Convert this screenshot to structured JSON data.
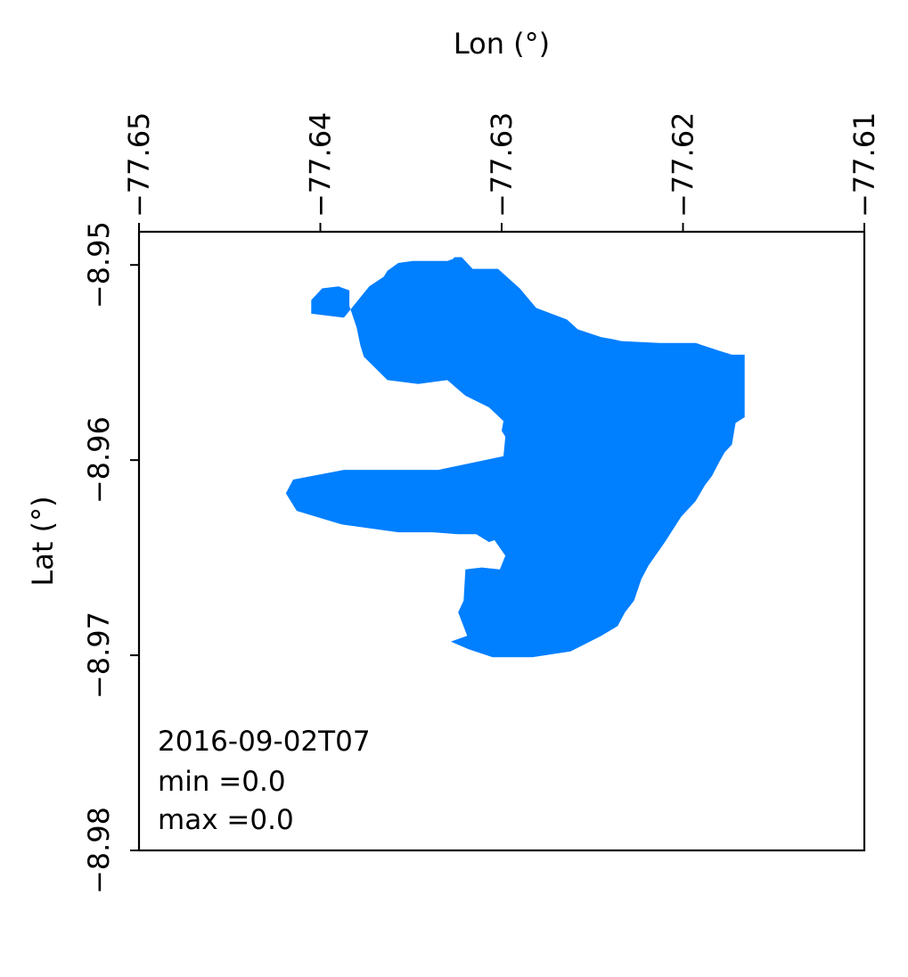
{
  "chart_data": {
    "type": "heatmap",
    "title": "",
    "xlabel": "Lon (°)",
    "ylabel": "Lat (°)",
    "xlim": [
      -77.65,
      -77.61
    ],
    "ylim": [
      -8.98,
      -8.9483
    ],
    "x_ticks": [
      -77.65,
      -77.64,
      -77.63,
      -77.62,
      -77.61
    ],
    "x_tick_labels": [
      "−77.65",
      "−77.64",
      "−77.63",
      "−77.62",
      "−77.61"
    ],
    "y_ticks": [
      -8.95,
      -8.96,
      -8.97,
      -8.98
    ],
    "y_tick_labels": [
      "−8.95",
      "−8.96",
      "−8.97",
      "−8.98"
    ],
    "x_axis_position": "top",
    "grid": false,
    "fill_color": "#007FFF",
    "mask_value": 0.0,
    "mask_outline_lonlat": [
      [
        -77.6316,
        -8.9502
      ],
      [
        -77.6302,
        -8.9502
      ],
      [
        -77.629,
        -8.9512
      ],
      [
        -77.6281,
        -8.9522
      ],
      [
        -77.6264,
        -8.9528
      ],
      [
        -77.6258,
        -8.9533
      ],
      [
        -77.6245,
        -8.9537
      ],
      [
        -77.6239,
        -8.9538
      ],
      [
        -77.6234,
        -8.9539
      ],
      [
        -77.6213,
        -8.954
      ],
      [
        -77.6193,
        -8.954
      ],
      [
        -77.618,
        -8.9544
      ],
      [
        -77.6173,
        -8.9546
      ],
      [
        -77.6166,
        -8.9546
      ],
      [
        -77.6166,
        -8.9578
      ],
      [
        -77.6171,
        -8.9581
      ],
      [
        -77.6173,
        -8.9592
      ],
      [
        -77.6177,
        -8.9596
      ],
      [
        -77.618,
        -8.9601
      ],
      [
        -77.6184,
        -8.9608
      ],
      [
        -77.6188,
        -8.9613
      ],
      [
        -77.6193,
        -8.9621
      ],
      [
        -77.6201,
        -8.9629
      ],
      [
        -77.621,
        -8.9642
      ],
      [
        -77.6219,
        -8.9654
      ],
      [
        -77.6223,
        -8.9661
      ],
      [
        -77.6227,
        -8.9672
      ],
      [
        -77.6232,
        -8.9678
      ],
      [
        -77.6236,
        -8.9685
      ],
      [
        -77.6245,
        -8.969
      ],
      [
        -77.6262,
        -8.9698
      ],
      [
        -77.6283,
        -8.9701
      ],
      [
        -77.6305,
        -8.9701
      ],
      [
        -77.6318,
        -8.9697
      ],
      [
        -77.6328,
        -8.9693
      ],
      [
        -77.6319,
        -8.969
      ],
      [
        -77.6324,
        -8.9678
      ],
      [
        -77.6321,
        -8.9672
      ],
      [
        -77.632,
        -8.9656
      ],
      [
        -77.6311,
        -8.9655
      ],
      [
        -77.6301,
        -8.9656
      ],
      [
        -77.6298,
        -8.9649
      ],
      [
        -77.6304,
        -8.9641
      ],
      [
        -77.6307,
        -8.9642
      ],
      [
        -77.6314,
        -8.9638
      ],
      [
        -77.6324,
        -8.9638
      ],
      [
        -77.6338,
        -8.9637
      ],
      [
        -77.6357,
        -8.9637
      ],
      [
        -77.6388,
        -8.9633
      ],
      [
        -77.6413,
        -8.9626
      ],
      [
        -77.6419,
        -8.9617
      ],
      [
        -77.6415,
        -8.961
      ],
      [
        -77.6387,
        -8.9605
      ],
      [
        -77.6335,
        -8.9605
      ],
      [
        -77.6299,
        -8.9598
      ],
      [
        -77.6298,
        -8.9588
      ],
      [
        -77.63,
        -8.9585
      ],
      [
        -77.6299,
        -8.958
      ],
      [
        -77.6307,
        -8.9573
      ],
      [
        -77.632,
        -8.9567
      ],
      [
        -77.633,
        -8.9559
      ],
      [
        -77.6346,
        -8.9561
      ],
      [
        -77.6363,
        -8.9559
      ],
      [
        -77.6376,
        -8.9547
      ],
      [
        -77.6378,
        -8.9541
      ],
      [
        -77.638,
        -8.9532
      ],
      [
        -77.6384,
        -8.9521
      ],
      [
        -77.6384,
        -8.9513
      ],
      [
        -77.639,
        -8.9511
      ],
      [
        -77.6399,
        -8.9512
      ],
      [
        -77.6405,
        -8.9518
      ],
      [
        -77.6405,
        -8.9525
      ],
      [
        -77.6387,
        -8.9527
      ],
      [
        -77.6373,
        -8.9511
      ],
      [
        -77.6365,
        -8.9506
      ],
      [
        -77.6363,
        -8.9503
      ],
      [
        -77.6357,
        -8.9499
      ],
      [
        -77.6349,
        -8.9498
      ],
      [
        -77.6339,
        -8.9498
      ],
      [
        -77.633,
        -8.9498
      ],
      [
        -77.6327,
        -8.9497
      ],
      [
        -77.6326,
        -8.9496
      ],
      [
        -77.6322,
        -8.9496
      ],
      [
        -77.6316,
        -8.9502
      ]
    ],
    "annotation": {
      "lines": [
        "2016-09-02T07",
        "min =0.0",
        "max =0.0"
      ],
      "position": "bottom-left"
    }
  }
}
